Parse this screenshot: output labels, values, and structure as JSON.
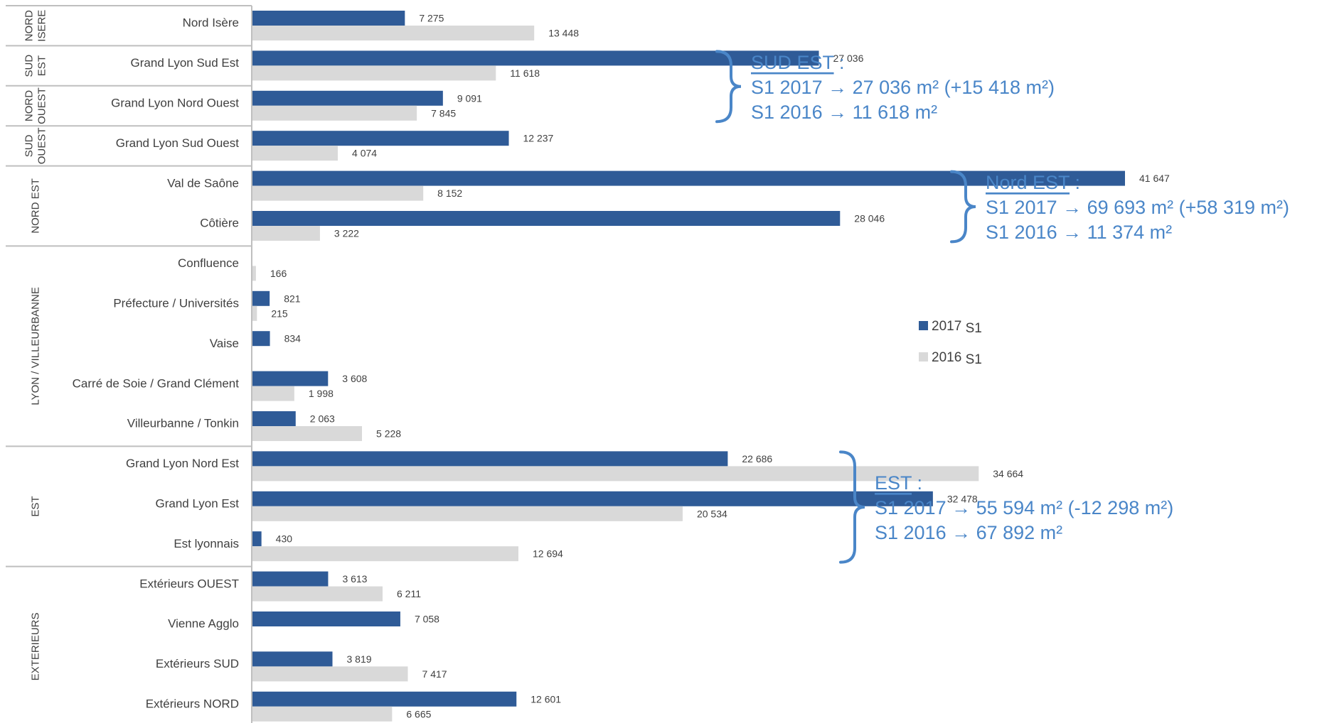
{
  "chart_data": {
    "type": "bar",
    "orientation": "horizontal",
    "categories": [
      "Nord Isère",
      "Grand Lyon Sud Est",
      "Grand Lyon Nord Ouest",
      "Grand Lyon Sud Ouest",
      "Val de Saône",
      "Côtière",
      "Confluence",
      "Préfecture / Universités",
      "Vaise",
      "Carré de Soie / Grand Clément",
      "Villeurbanne / Tonkin",
      "Grand Lyon Nord Est",
      "Grand Lyon Est",
      "Est lyonnais",
      "Extérieurs OUEST",
      "Vienne Agglo",
      "Extérieurs SUD",
      "Extérieurs NORD"
    ],
    "series": [
      {
        "name": "2017 S1",
        "color": "#2f5b97",
        "values": [
          7275,
          27036,
          9091,
          12237,
          41647,
          28046,
          null,
          821,
          834,
          3608,
          2063,
          22686,
          32478,
          430,
          3613,
          7058,
          3819,
          12601
        ],
        "labels": [
          "7 275",
          "27 036",
          "9 091",
          "12 237",
          "41 647",
          "28 046",
          "",
          "821",
          "834",
          "3 608",
          "2 063",
          "22 686",
          "32 478",
          "430",
          "3 613",
          "7 058",
          "3 819",
          "12 601"
        ]
      },
      {
        "name": "2016 S1",
        "color": "#d9d9d9",
        "values": [
          13448,
          11618,
          7845,
          4074,
          8152,
          3222,
          166,
          215,
          null,
          1998,
          5228,
          34664,
          20534,
          12694,
          6211,
          null,
          7417,
          6665
        ],
        "labels": [
          "13 448",
          "11 618",
          "7 845",
          "4 074",
          "8 152",
          "3 222",
          "166",
          "215",
          "",
          "1 998",
          "5 228",
          "34 664",
          "20 534",
          "12 694",
          "6 211",
          "",
          "7 417",
          "6 665"
        ]
      }
    ],
    "groups": [
      {
        "lines": [
          "NORD",
          "ISERE"
        ],
        "from": 0,
        "to": 0
      },
      {
        "lines": [
          "SUD",
          "EST"
        ],
        "from": 1,
        "to": 1
      },
      {
        "lines": [
          "NORD",
          "OUEST"
        ],
        "from": 2,
        "to": 2
      },
      {
        "lines": [
          "SUD",
          "OUEST"
        ],
        "from": 3,
        "to": 3
      },
      {
        "lines": [
          "NORD EST"
        ],
        "from": 4,
        "to": 5
      },
      {
        "lines": [
          "LYON / VILLEURBANNE"
        ],
        "from": 6,
        "to": 10
      },
      {
        "lines": [
          "EST"
        ],
        "from": 11,
        "to": 13
      },
      {
        "lines": [
          "EXTERIEURS"
        ],
        "from": 14,
        "to": 17
      }
    ],
    "legend": {
      "position": "right",
      "entries": [
        {
          "year": "2017",
          "period": "S1",
          "color": "#2f5b97"
        },
        {
          "year": "2016",
          "period": "S1",
          "color": "#d9d9d9"
        }
      ]
    },
    "xlim": [
      0,
      42000
    ],
    "grid": false,
    "annotations": [
      {
        "title": "SUD EST",
        "suffix": " :",
        "lines": [
          "S1 2017 → 27 036 m² (+15 418 m²)",
          "S1 2016 → 11 618 m²"
        ],
        "brace_from": 1,
        "brace_to": 2
      },
      {
        "title": "Nord EST",
        "suffix": " :",
        "lines": [
          "S1 2017 → 69 693 m² (+58 319 m²)",
          "S1 2016 → 11 374 m²"
        ],
        "brace_from": 4,
        "brace_to": 5
      },
      {
        "title": "EST",
        "suffix": " :",
        "lines": [
          "S1 2017 → 55 594 m² (-12 298 m²)",
          "S1 2016 → 67 892 m²"
        ],
        "brace_from": 11,
        "brace_to": 13
      }
    ],
    "colors": {
      "annotation": "#4a86c8",
      "text": "#404040",
      "separator": "#bfbfbf"
    }
  }
}
